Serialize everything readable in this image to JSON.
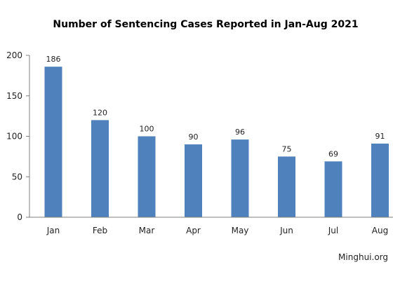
{
  "chart_data": {
    "type": "bar",
    "title": "Number of Sentencing Cases Reported in Jan-Aug 2021",
    "xlabel": "",
    "ylabel": "",
    "categories": [
      "Jan",
      "Feb",
      "Mar",
      "Apr",
      "May",
      "Jun",
      "Jul",
      "Aug"
    ],
    "values": [
      186,
      120,
      100,
      90,
      96,
      75,
      69,
      91
    ],
    "ylim": [
      0,
      200
    ],
    "yticks": [
      0,
      50,
      100,
      150,
      200
    ],
    "ytick_labels": [
      "0",
      "50",
      "100",
      "150",
      "200"
    ],
    "grid": false,
    "legend": "none",
    "bar_color": "#4f81bd",
    "source": "Minghui.org"
  }
}
